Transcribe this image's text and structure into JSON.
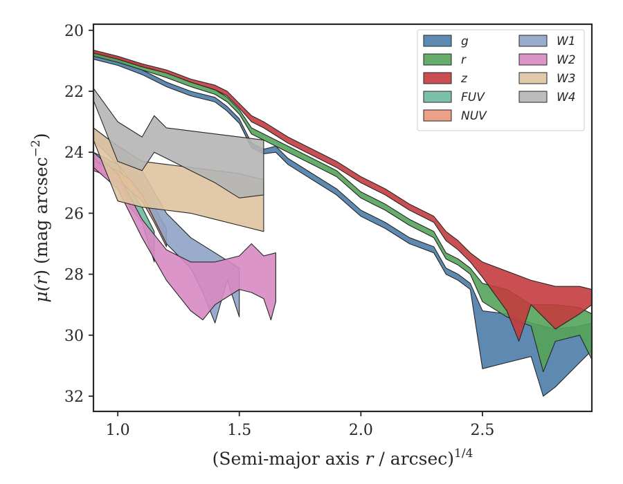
{
  "chart_data": {
    "type": "area",
    "xlabel_parts": [
      "(Semi-major axis ",
      "r",
      " / arcsec)",
      "1/4"
    ],
    "ylabel_parts": [
      "μ(",
      "r",
      ") (mag arcsec",
      "−2",
      ")"
    ],
    "xlim": [
      0.9,
      2.95
    ],
    "ylim": [
      32.5,
      19.8
    ],
    "y_inverted": true,
    "xticks": [
      1.0,
      1.5,
      2.0,
      2.5
    ],
    "xtick_labels": [
      "1.0",
      "1.5",
      "2.0",
      "2.5"
    ],
    "yticks": [
      20,
      22,
      24,
      26,
      28,
      30,
      32
    ],
    "ytick_labels": [
      "20",
      "22",
      "24",
      "26",
      "28",
      "30",
      "32"
    ],
    "legend_placement": "top-right",
    "legend_columns": 2,
    "series": [
      {
        "name": "g",
        "color": "#4c7ca8",
        "upper": [
          [
            0.9,
            20.8
          ],
          [
            1.0,
            21.0
          ],
          [
            1.1,
            21.3
          ],
          [
            1.2,
            21.7
          ],
          [
            1.3,
            22.0
          ],
          [
            1.4,
            22.2
          ],
          [
            1.45,
            22.5
          ],
          [
            1.5,
            22.9
          ],
          [
            1.55,
            23.7
          ],
          [
            1.6,
            23.9
          ],
          [
            1.65,
            23.8
          ],
          [
            1.7,
            24.2
          ],
          [
            1.8,
            24.7
          ],
          [
            1.9,
            25.2
          ],
          [
            2.0,
            25.9
          ],
          [
            2.05,
            26.1
          ],
          [
            2.1,
            26.3
          ],
          [
            2.2,
            26.8
          ],
          [
            2.3,
            27.1
          ],
          [
            2.35,
            27.8
          ],
          [
            2.4,
            28.0
          ],
          [
            2.45,
            28.3
          ],
          [
            2.5,
            29.2
          ],
          [
            2.6,
            29.3
          ],
          [
            2.7,
            29.6
          ],
          [
            2.8,
            29.8
          ],
          [
            2.9,
            29.7
          ],
          [
            2.95,
            29.6
          ]
        ],
        "lower": [
          [
            0.9,
            20.95
          ],
          [
            1.0,
            21.15
          ],
          [
            1.1,
            21.45
          ],
          [
            1.2,
            21.85
          ],
          [
            1.3,
            22.15
          ],
          [
            1.4,
            22.35
          ],
          [
            1.45,
            22.65
          ],
          [
            1.5,
            23.05
          ],
          [
            1.55,
            23.85
          ],
          [
            1.6,
            24.05
          ],
          [
            1.65,
            24.0
          ],
          [
            1.7,
            24.4
          ],
          [
            1.8,
            24.9
          ],
          [
            1.9,
            25.4
          ],
          [
            2.0,
            26.1
          ],
          [
            2.05,
            26.3
          ],
          [
            2.1,
            26.5
          ],
          [
            2.2,
            27.0
          ],
          [
            2.3,
            27.3
          ],
          [
            2.35,
            28.0
          ],
          [
            2.4,
            28.2
          ],
          [
            2.45,
            28.5
          ],
          [
            2.5,
            31.1
          ],
          [
            2.6,
            30.9
          ],
          [
            2.7,
            30.7
          ],
          [
            2.75,
            32.0
          ],
          [
            2.8,
            31.7
          ],
          [
            2.9,
            30.9
          ],
          [
            2.95,
            30.5
          ]
        ]
      },
      {
        "name": "r",
        "color": "#55a35a",
        "upper": [
          [
            0.9,
            20.7
          ],
          [
            1.0,
            20.9
          ],
          [
            1.1,
            21.15
          ],
          [
            1.2,
            21.4
          ],
          [
            1.3,
            21.7
          ],
          [
            1.4,
            21.95
          ],
          [
            1.45,
            22.2
          ],
          [
            1.5,
            22.6
          ],
          [
            1.55,
            23.2
          ],
          [
            1.6,
            23.4
          ],
          [
            1.7,
            23.8
          ],
          [
            1.8,
            24.2
          ],
          [
            1.9,
            24.6
          ],
          [
            2.0,
            25.3
          ],
          [
            2.05,
            25.5
          ],
          [
            2.1,
            25.7
          ],
          [
            2.2,
            26.2
          ],
          [
            2.3,
            26.6
          ],
          [
            2.35,
            27.3
          ],
          [
            2.4,
            27.5
          ],
          [
            2.45,
            27.8
          ],
          [
            2.5,
            28.3
          ],
          [
            2.6,
            28.5
          ],
          [
            2.7,
            29.0
          ],
          [
            2.8,
            29.0
          ],
          [
            2.9,
            29.1
          ],
          [
            2.95,
            29.3
          ]
        ],
        "lower": [
          [
            0.9,
            20.85
          ],
          [
            1.0,
            21.05
          ],
          [
            1.1,
            21.3
          ],
          [
            1.2,
            21.55
          ],
          [
            1.3,
            21.85
          ],
          [
            1.4,
            22.1
          ],
          [
            1.45,
            22.35
          ],
          [
            1.5,
            22.75
          ],
          [
            1.55,
            23.4
          ],
          [
            1.6,
            23.6
          ],
          [
            1.7,
            24.0
          ],
          [
            1.8,
            24.4
          ],
          [
            1.9,
            24.8
          ],
          [
            2.0,
            25.5
          ],
          [
            2.05,
            25.7
          ],
          [
            2.1,
            25.9
          ],
          [
            2.2,
            26.4
          ],
          [
            2.3,
            26.8
          ],
          [
            2.35,
            27.5
          ],
          [
            2.4,
            27.7
          ],
          [
            2.45,
            28.0
          ],
          [
            2.5,
            28.9
          ],
          [
            2.6,
            29.4
          ],
          [
            2.7,
            29.7
          ],
          [
            2.75,
            31.2
          ],
          [
            2.8,
            30.2
          ],
          [
            2.9,
            30.0
          ],
          [
            2.95,
            30.8
          ]
        ]
      },
      {
        "name": "z",
        "color": "#c43c3f",
        "upper": [
          [
            0.9,
            20.65
          ],
          [
            1.0,
            20.85
          ],
          [
            1.1,
            21.1
          ],
          [
            1.2,
            21.3
          ],
          [
            1.3,
            21.6
          ],
          [
            1.4,
            21.8
          ],
          [
            1.45,
            22.0
          ],
          [
            1.5,
            22.4
          ],
          [
            1.55,
            22.8
          ],
          [
            1.6,
            23.0
          ],
          [
            1.7,
            23.5
          ],
          [
            1.8,
            23.9
          ],
          [
            1.9,
            24.3
          ],
          [
            2.0,
            24.8
          ],
          [
            2.05,
            25.0
          ],
          [
            2.1,
            25.2
          ],
          [
            2.2,
            25.7
          ],
          [
            2.3,
            26.1
          ],
          [
            2.35,
            26.6
          ],
          [
            2.4,
            26.9
          ],
          [
            2.45,
            27.3
          ],
          [
            2.5,
            27.6
          ],
          [
            2.6,
            27.9
          ],
          [
            2.7,
            28.2
          ],
          [
            2.8,
            28.4
          ],
          [
            2.9,
            28.4
          ],
          [
            2.95,
            28.5
          ]
        ],
        "lower": [
          [
            0.9,
            20.75
          ],
          [
            1.0,
            20.95
          ],
          [
            1.1,
            21.2
          ],
          [
            1.2,
            21.4
          ],
          [
            1.3,
            21.7
          ],
          [
            1.4,
            21.95
          ],
          [
            1.45,
            22.15
          ],
          [
            1.5,
            22.55
          ],
          [
            1.55,
            23.0
          ],
          [
            1.6,
            23.2
          ],
          [
            1.7,
            23.7
          ],
          [
            1.8,
            24.1
          ],
          [
            1.9,
            24.5
          ],
          [
            2.0,
            25.0
          ],
          [
            2.05,
            25.2
          ],
          [
            2.1,
            25.4
          ],
          [
            2.2,
            25.9
          ],
          [
            2.3,
            26.3
          ],
          [
            2.35,
            26.9
          ],
          [
            2.4,
            27.2
          ],
          [
            2.45,
            27.6
          ],
          [
            2.5,
            28.1
          ],
          [
            2.6,
            29.2
          ],
          [
            2.65,
            30.2
          ],
          [
            2.7,
            29.0
          ],
          [
            2.8,
            29.8
          ],
          [
            2.9,
            29.3
          ],
          [
            2.95,
            29.0
          ]
        ]
      },
      {
        "name": "FUV",
        "color": "#6fb9a0",
        "upper": [
          [
            0.9,
            24.0
          ],
          [
            1.0,
            24.4
          ],
          [
            1.05,
            25.2
          ],
          [
            1.1,
            25.8
          ],
          [
            1.15,
            26.6
          ]
        ],
        "lower": [
          [
            0.9,
            24.2
          ],
          [
            1.0,
            24.8
          ],
          [
            1.05,
            25.8
          ],
          [
            1.1,
            26.3
          ],
          [
            1.15,
            27.6
          ]
        ]
      },
      {
        "name": "NUV",
        "color": "#e8977a",
        "upper": [
          [
            0.9,
            24.3
          ],
          [
            1.0,
            24.6
          ],
          [
            1.1,
            25.2
          ],
          [
            1.15,
            25.8
          ],
          [
            1.2,
            26.5
          ]
        ],
        "lower": [
          [
            0.9,
            24.6
          ],
          [
            1.0,
            24.9
          ],
          [
            1.1,
            25.6
          ],
          [
            1.15,
            26.3
          ],
          [
            1.2,
            27.1
          ]
        ]
      },
      {
        "name": "W1",
        "color": "#8fa3c6",
        "upper": [
          [
            0.9,
            23.2
          ],
          [
            1.0,
            23.8
          ],
          [
            1.1,
            24.6
          ],
          [
            1.2,
            26.0
          ],
          [
            1.3,
            26.8
          ],
          [
            1.4,
            27.3
          ],
          [
            1.5,
            27.8
          ]
        ],
        "lower": [
          [
            0.9,
            23.6
          ],
          [
            1.0,
            24.4
          ],
          [
            1.1,
            25.4
          ],
          [
            1.2,
            27.0
          ],
          [
            1.3,
            27.8
          ],
          [
            1.35,
            28.6
          ],
          [
            1.4,
            29.6
          ],
          [
            1.45,
            28.2
          ],
          [
            1.5,
            29.4
          ]
        ]
      },
      {
        "name": "W2",
        "color": "#d889c2",
        "upper": [
          [
            0.9,
            24.0
          ],
          [
            1.0,
            24.7
          ],
          [
            1.1,
            26.2
          ],
          [
            1.2,
            27.2
          ],
          [
            1.3,
            27.6
          ],
          [
            1.4,
            27.6
          ],
          [
            1.5,
            27.4
          ],
          [
            1.55,
            27.0
          ],
          [
            1.6,
            27.4
          ],
          [
            1.65,
            27.3
          ]
        ],
        "lower": [
          [
            0.9,
            24.5
          ],
          [
            1.0,
            25.2
          ],
          [
            1.1,
            26.8
          ],
          [
            1.2,
            28.2
          ],
          [
            1.3,
            29.2
          ],
          [
            1.35,
            29.5
          ],
          [
            1.4,
            29.0
          ],
          [
            1.5,
            28.5
          ],
          [
            1.55,
            28.6
          ],
          [
            1.6,
            28.8
          ],
          [
            1.63,
            29.5
          ],
          [
            1.65,
            28.9
          ]
        ]
      },
      {
        "name": "W3",
        "color": "#dfc3a0",
        "upper": [
          [
            0.9,
            23.2
          ],
          [
            1.0,
            23.8
          ],
          [
            1.1,
            24.3
          ],
          [
            1.2,
            24.4
          ],
          [
            1.3,
            24.5
          ],
          [
            1.4,
            24.6
          ],
          [
            1.5,
            24.7
          ],
          [
            1.6,
            24.9
          ]
        ],
        "lower": [
          [
            0.9,
            23.6
          ],
          [
            1.0,
            25.6
          ],
          [
            1.1,
            25.8
          ],
          [
            1.2,
            25.9
          ],
          [
            1.3,
            26.0
          ],
          [
            1.4,
            26.2
          ],
          [
            1.5,
            26.4
          ],
          [
            1.6,
            26.6
          ]
        ]
      },
      {
        "name": "W4",
        "color": "#b5b5b5",
        "upper": [
          [
            0.9,
            21.9
          ],
          [
            1.0,
            23.0
          ],
          [
            1.1,
            23.5
          ],
          [
            1.15,
            22.8
          ],
          [
            1.2,
            23.2
          ],
          [
            1.3,
            23.3
          ],
          [
            1.4,
            23.4
          ],
          [
            1.5,
            23.5
          ],
          [
            1.6,
            23.6
          ]
        ],
        "lower": [
          [
            0.9,
            22.3
          ],
          [
            1.0,
            24.3
          ],
          [
            1.1,
            24.6
          ],
          [
            1.15,
            24.0
          ],
          [
            1.2,
            24.2
          ],
          [
            1.3,
            24.6
          ],
          [
            1.4,
            25.0
          ],
          [
            1.5,
            25.5
          ],
          [
            1.6,
            25.4
          ]
        ]
      }
    ]
  }
}
